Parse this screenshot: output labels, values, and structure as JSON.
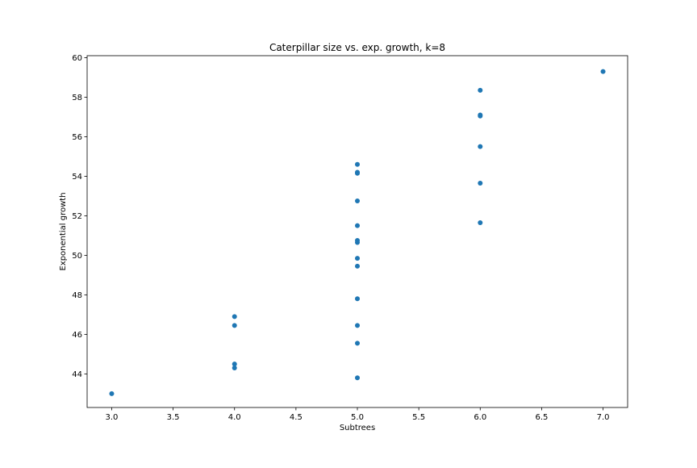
{
  "chart_data": {
    "type": "scatter",
    "title": "Caterpillar size vs. exp. growth, k=8",
    "xlabel": "Subtrees",
    "ylabel": "Exponential growth",
    "xlim": [
      2.8,
      7.2
    ],
    "ylim": [
      42.3,
      60.1
    ],
    "xticks": [
      3.0,
      3.5,
      4.0,
      4.5,
      5.0,
      5.5,
      6.0,
      6.5,
      7.0
    ],
    "xtick_labels": [
      "3.0",
      "3.5",
      "4.0",
      "4.5",
      "5.0",
      "5.5",
      "6.0",
      "6.5",
      "7.0"
    ],
    "yticks": [
      44,
      46,
      48,
      50,
      52,
      54,
      56,
      58,
      60
    ],
    "ytick_labels": [
      "44",
      "46",
      "48",
      "50",
      "52",
      "54",
      "56",
      "58",
      "60"
    ],
    "grid": false,
    "marker_color": "#1f77b4",
    "points": [
      {
        "x": 3.0,
        "y": 43.0
      },
      {
        "x": 4.0,
        "y": 44.3
      },
      {
        "x": 4.0,
        "y": 44.5
      },
      {
        "x": 4.0,
        "y": 46.45
      },
      {
        "x": 4.0,
        "y": 46.9
      },
      {
        "x": 5.0,
        "y": 43.8
      },
      {
        "x": 5.0,
        "y": 45.55
      },
      {
        "x": 5.0,
        "y": 46.45
      },
      {
        "x": 5.0,
        "y": 47.8
      },
      {
        "x": 5.0,
        "y": 49.45
      },
      {
        "x": 5.0,
        "y": 49.85
      },
      {
        "x": 5.0,
        "y": 50.65
      },
      {
        "x": 5.0,
        "y": 50.75
      },
      {
        "x": 5.0,
        "y": 51.5
      },
      {
        "x": 5.0,
        "y": 52.75
      },
      {
        "x": 5.0,
        "y": 54.15
      },
      {
        "x": 5.0,
        "y": 54.2
      },
      {
        "x": 5.0,
        "y": 54.6
      },
      {
        "x": 6.0,
        "y": 51.65
      },
      {
        "x": 6.0,
        "y": 53.65
      },
      {
        "x": 6.0,
        "y": 55.5
      },
      {
        "x": 6.0,
        "y": 57.05
      },
      {
        "x": 6.0,
        "y": 57.1
      },
      {
        "x": 6.0,
        "y": 58.35
      },
      {
        "x": 7.0,
        "y": 59.3
      }
    ]
  }
}
